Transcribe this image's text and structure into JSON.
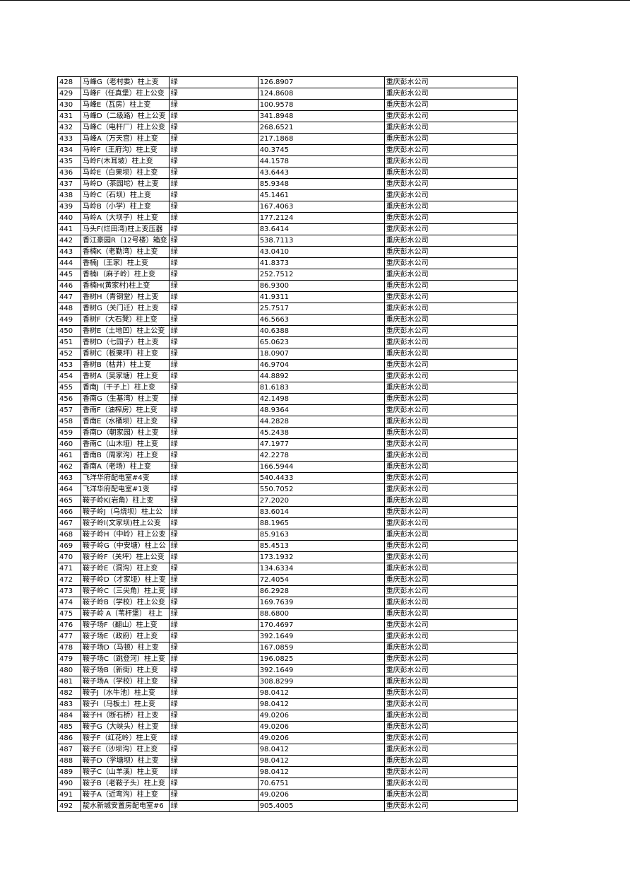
{
  "table": {
    "rows": [
      [
        "428",
        "马峰G（老村委）柱上变",
        "绿",
        "126.8907",
        "重庆彭水公司"
      ],
      [
        "429",
        "马峰F（任真堡）柱上公变",
        "绿",
        "124.8608",
        "重庆彭水公司"
      ],
      [
        "430",
        "马峰E（瓦房）柱上变",
        "绿",
        "100.9578",
        "重庆彭水公司"
      ],
      [
        "431",
        "马峰D（二级路）柱上公变",
        "绿",
        "341.8948",
        "重庆彭水公司"
      ],
      [
        "432",
        "马峰C（电杆厂）柱上公变",
        "绿",
        "268.6521",
        "重庆彭水公司"
      ],
      [
        "433",
        "马峰A（万天宫）柱上变",
        "绿",
        "217.1868",
        "重庆彭水公司"
      ],
      [
        "434",
        "马岭F（王府沟）柱上变",
        "绿",
        "40.3745",
        "重庆彭水公司"
      ],
      [
        "435",
        "马岭F(木耳坡）柱上变",
        "绿",
        "44.1578",
        "重庆彭水公司"
      ],
      [
        "436",
        "马岭E（白果坝）柱上变",
        "绿",
        "43.6443",
        "重庆彭水公司"
      ],
      [
        "437",
        "马岭D（茶园坨）柱上变",
        "绿",
        "85.9348",
        "重庆彭水公司"
      ],
      [
        "438",
        "马岭C（石坝）柱上变",
        "绿",
        "45.1461",
        "重庆彭水公司"
      ],
      [
        "439",
        "马岭B（小学）柱上变",
        "绿",
        "167.4063",
        "重庆彭水公司"
      ],
      [
        "440",
        "马岭A（大坝子）柱上变",
        "绿",
        "177.2124",
        "重庆彭水公司"
      ],
      [
        "441",
        "马头F(烂田湾)柱上变压器",
        "绿",
        "83.6414",
        "重庆彭水公司"
      ],
      [
        "442",
        "香江豪园R（12号楼）箱变",
        "绿",
        "538.7113",
        "重庆彭水公司"
      ],
      [
        "443",
        "香楠K（老勤湾）柱上变",
        "绿",
        "43.0410",
        "重庆彭水公司"
      ],
      [
        "444",
        "香楠J（王家）柱上变",
        "绿",
        "41.8373",
        "重庆彭水公司"
      ],
      [
        "445",
        "香楠I（麻子岭）柱上变",
        "绿",
        "252.7512",
        "重庆彭水公司"
      ],
      [
        "446",
        "香楠H(黄家村)柱上变",
        "绿",
        "86.9300",
        "重庆彭水公司"
      ],
      [
        "447",
        "香树H（青钢堂）柱上变",
        "绿",
        "41.9311",
        "重庆彭水公司"
      ],
      [
        "448",
        "香树G（关门迁）柱上变",
        "绿",
        "25.7517",
        "重庆彭水公司"
      ],
      [
        "449",
        "香树F（大石凳）柱上变",
        "绿",
        "46.5663",
        "重庆彭水公司"
      ],
      [
        "450",
        "香树E（土地凹）柱上公变",
        "绿",
        "40.6388",
        "重庆彭水公司"
      ],
      [
        "451",
        "香树D（七园子）柱上变",
        "绿",
        "65.0623",
        "重庆彭水公司"
      ],
      [
        "452",
        "香树C（板栗坪）柱上变",
        "绿",
        "18.0907",
        "重庆彭水公司"
      ],
      [
        "453",
        "香树B（枯井）柱上变",
        "绿",
        "46.9704",
        "重庆彭水公司"
      ],
      [
        "454",
        "香树A（吴家塘）柱上变",
        "绿",
        "44.8892",
        "重庆彭水公司"
      ],
      [
        "455",
        "香南J（干子上）柱上变",
        "绿",
        "81.6183",
        "重庆彭水公司"
      ],
      [
        "456",
        "香南G（生基湾）柱上变",
        "绿",
        "42.1498",
        "重庆彭水公司"
      ],
      [
        "457",
        "香南F（油榨房）柱上变",
        "绿",
        "48.9364",
        "重庆彭水公司"
      ],
      [
        "458",
        "香南E（水桶坝）柱上变",
        "绿",
        "44.2828",
        "重庆彭水公司"
      ],
      [
        "459",
        "香南D（朝家园）柱上变",
        "绿",
        "45.2438",
        "重庆彭水公司"
      ],
      [
        "460",
        "香南C（山木垭）柱上变",
        "绿",
        "47.1977",
        "重庆彭水公司"
      ],
      [
        "461",
        "香南B（周家沟）柱上变",
        "绿",
        "42.2278",
        "重庆彭水公司"
      ],
      [
        "462",
        "香南A（老场）柱上变",
        "绿",
        "166.5944",
        "重庆彭水公司"
      ],
      [
        "463",
        "飞洋华府配电室#4变",
        "绿",
        "540.4433",
        "重庆彭水公司"
      ],
      [
        "464",
        "飞洋华府配电室#1变",
        "绿",
        "550.7052",
        "重庆彭水公司"
      ],
      [
        "465",
        "鞍子岭K(岩角）柱上变",
        "绿",
        "27.2020",
        "重庆彭水公司"
      ],
      [
        "466",
        "鞍子岭J（乌烧坝）柱上公",
        "绿",
        "83.6014",
        "重庆彭水公司"
      ],
      [
        "467",
        "鞍子岭I(文家坝)柱上公变",
        "绿",
        "88.1965",
        "重庆彭水公司"
      ],
      [
        "468",
        "鞍子岭H（中岭）柱上公变",
        "绿",
        "85.9163",
        "重庆彭水公司"
      ],
      [
        "469",
        "鞍子岭G（中安塘）柱上公",
        "绿",
        "85.4513",
        "重庆彭水公司"
      ],
      [
        "470",
        "鞍子岭F（关坪）柱上公变",
        "绿",
        "173.1932",
        "重庆彭水公司"
      ],
      [
        "471",
        "鞍子岭E（洞沟）柱上变",
        "绿",
        "134.6334",
        "重庆彭水公司"
      ],
      [
        "472",
        "鞍子岭D（才家垭）柱上变",
        "绿",
        "72.4054",
        "重庆彭水公司"
      ],
      [
        "473",
        "鞍子岭C（三尖角）柱上变",
        "绿",
        "86.2928",
        "重庆彭水公司"
      ],
      [
        "474",
        "鞍子岭B（学校）柱上公变",
        "绿",
        "169.7639",
        "重庆彭水公司"
      ],
      [
        "475",
        "鞍子岭 A（苇杆堡） 柱上",
        "绿",
        "88.6800",
        "重庆彭水公司"
      ],
      [
        "476",
        "鞍子场F（翻山）柱上变",
        "绿",
        "170.4697",
        "重庆彭水公司"
      ],
      [
        "477",
        "鞍子场E（政府）柱上变",
        "绿",
        "392.1649",
        "重庆彭水公司"
      ],
      [
        "478",
        "鞍子场D（马顿）柱上变",
        "绿",
        "167.0859",
        "重庆彭水公司"
      ],
      [
        "479",
        "鞍子场C（跳登河）柱上变",
        "绿",
        "196.0825",
        "重庆彭水公司"
      ],
      [
        "480",
        "鞍子场B（新街）柱上变",
        "绿",
        "392.1649",
        "重庆彭水公司"
      ],
      [
        "481",
        "鞍子场A（学校）柱上变",
        "绿",
        "308.8299",
        "重庆彭水公司"
      ],
      [
        "482",
        "鞍子J（水牛池）柱上变",
        "绿",
        "98.0412",
        "重庆彭水公司"
      ],
      [
        "483",
        "鞍子I（马板土）柱上变",
        "绿",
        "98.0412",
        "重庆彭水公司"
      ],
      [
        "484",
        "鞍子H（断石桥）柱上变",
        "绿",
        "49.0206",
        "重庆彭水公司"
      ],
      [
        "485",
        "鞍子G（大峡头）柱上变",
        "绿",
        "49.0206",
        "重庆彭水公司"
      ],
      [
        "486",
        "鞍子F（红花岭）柱上变",
        "绿",
        "49.0206",
        "重庆彭水公司"
      ],
      [
        "487",
        "鞍子E（沙坝沟）柱上变",
        "绿",
        "98.0412",
        "重庆彭水公司"
      ],
      [
        "488",
        "鞍子D（学塘坝）柱上变",
        "绿",
        "98.0412",
        "重庆彭水公司"
      ],
      [
        "489",
        "鞍子C（山羊溪）柱上变",
        "绿",
        "98.0412",
        "重庆彭水公司"
      ],
      [
        "490",
        "鞍子B（老鞍子头）柱上变",
        "绿",
        "70.6751",
        "重庆彭水公司"
      ],
      [
        "491",
        "鞍子A（近弯沟）柱上变",
        "绿",
        "49.0206",
        "重庆彭水公司"
      ],
      [
        "492",
        "靛水新城安置房配电室#6",
        "绿",
        "905.4005",
        "重庆彭水公司"
      ]
    ]
  }
}
